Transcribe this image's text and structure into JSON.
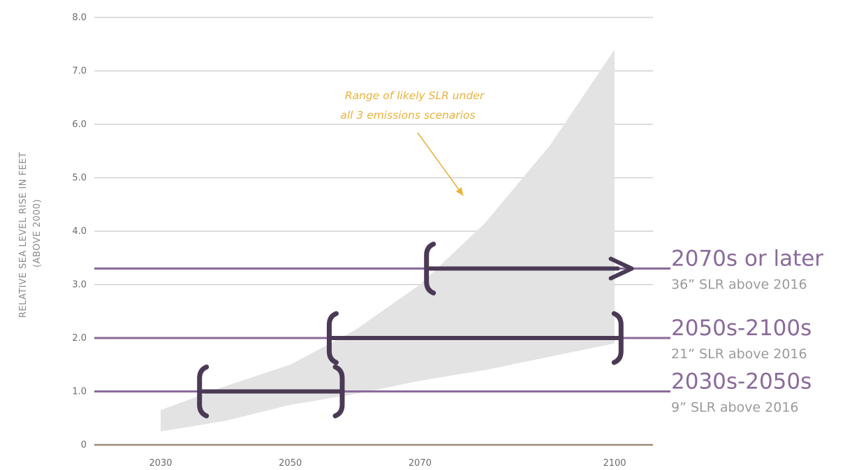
{
  "chart_data": {
    "type": "area",
    "ylabel_lines": [
      "RELATIVE SEA LEVEL RISE IN FEET",
      "(ABOVE 2000)"
    ],
    "xlabel": "",
    "x_ticks": [
      2030,
      2050,
      2070,
      2100
    ],
    "y_ticks": [
      {
        "value": 0,
        "label": "0"
      },
      {
        "value": 1,
        "label": "1.0"
      },
      {
        "value": 2,
        "label": "2.0"
      },
      {
        "value": 3,
        "label": "3.0"
      },
      {
        "value": 4,
        "label": "4.0"
      },
      {
        "value": 5,
        "label": "5.0"
      },
      {
        "value": 6,
        "label": "6.0"
      },
      {
        "value": 7,
        "label": "7.0"
      },
      {
        "value": 8,
        "label": "8.0"
      }
    ],
    "xlim": [
      2030,
      2100
    ],
    "ylim": [
      0,
      8
    ],
    "grid": true,
    "range_band": {
      "x": [
        2030,
        2040,
        2050,
        2060,
        2070,
        2080,
        2090,
        2100
      ],
      "lower": [
        0.25,
        0.45,
        0.75,
        0.95,
        1.2,
        1.4,
        1.65,
        1.9
      ],
      "upper": [
        0.65,
        1.1,
        1.5,
        2.15,
        3.0,
        4.15,
        5.6,
        7.4
      ]
    },
    "annotation": {
      "lines": [
        "Range of likely SLR under",
        "all 3 emissions scenarios"
      ],
      "color": "#e8b23a",
      "arrow_to": {
        "x": 2080,
        "y": 4.6
      }
    },
    "scenarios": [
      {
        "level": 3.3,
        "title": "2070s or later",
        "subtitle": "36” SLR above 2016",
        "start_year": 2071,
        "end_year": 2102,
        "end_style": "arrow",
        "title_color": "#8a6a9a"
      },
      {
        "level": 2.0,
        "title": "2050s-2100s",
        "subtitle": "21” SLR above 2016",
        "start_year": 2056,
        "end_year": 2101,
        "end_style": "bracket",
        "title_color": "#8a6a9a"
      },
      {
        "level": 1.0,
        "title": "2030s-2050s",
        "subtitle": "9” SLR above 2016",
        "start_year": 2036,
        "end_year": 2058,
        "end_style": "bracket",
        "title_color": "#8a6a9a"
      }
    ],
    "colors": {
      "band": "#e3e3e3",
      "grid": "#c8c8c8",
      "baseline": "#9a8a7a",
      "scenario_line": "#8a6a9a",
      "bracket": "#4a3a55",
      "tick_text": "#6b6b6b"
    }
  }
}
